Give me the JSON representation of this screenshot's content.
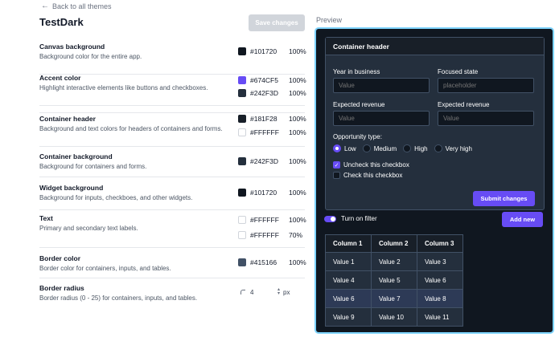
{
  "nav": {
    "back_label": "Back to all themes"
  },
  "theme": {
    "name": "TestDark",
    "save_label": "Save changes"
  },
  "settings": {
    "canvas": {
      "title": "Canvas background",
      "desc": "Background color for the entire app.",
      "colors": [
        {
          "hex": "#101720",
          "alpha": "100%"
        }
      ]
    },
    "accent": {
      "title": "Accent color",
      "desc": "Highlight interactive elements like buttons and checkboxes.",
      "colors": [
        {
          "hex": "#674CF5",
          "alpha": "100%"
        },
        {
          "hex": "#242F3D",
          "alpha": "100%"
        }
      ]
    },
    "header": {
      "title": "Container header",
      "desc": "Background and text colors for headers of containers and forms.",
      "colors": [
        {
          "hex": "#181F28",
          "alpha": "100%"
        },
        {
          "hex": "#FFFFFF",
          "alpha": "100%"
        }
      ]
    },
    "container": {
      "title": "Container background",
      "desc": "Background for containers and forms.",
      "colors": [
        {
          "hex": "#242F3D",
          "alpha": "100%"
        }
      ]
    },
    "widget": {
      "title": "Widget background",
      "desc": "Background for inputs, checkboes, and other widgets.",
      "colors": [
        {
          "hex": "#101720",
          "alpha": "100%"
        }
      ]
    },
    "text": {
      "title": "Text",
      "desc": "Primary and secondary text labels.",
      "colors": [
        {
          "hex": "#FFFFFF",
          "alpha": "100%"
        },
        {
          "hex": "#FFFFFF",
          "alpha": "70%"
        }
      ]
    },
    "border": {
      "title": "Border color",
      "desc": "Border color for containers, inputs, and tables.",
      "colors": [
        {
          "hex": "#415166",
          "alpha": "100%"
        }
      ]
    },
    "radius": {
      "title": "Border radius",
      "desc": "Border radius (0 - 25) for containers, inputs, and tables.",
      "value": "4",
      "unit": "px"
    }
  },
  "preview": {
    "label": "Preview",
    "card_title": "Container header",
    "fields": [
      {
        "label": "Year in business",
        "placeholder": "Value"
      },
      {
        "label": "Focused state",
        "placeholder": "placeholder"
      },
      {
        "label": "Expected revenue",
        "placeholder": "Value"
      },
      {
        "label": "Expected revenue",
        "placeholder": "Value"
      }
    ],
    "opportunity_label": "Opportunity type:",
    "radio_options": [
      "Low",
      "Medium",
      "High",
      "Very high"
    ],
    "radio_selected": "Low",
    "checkboxes": [
      {
        "label": "Uncheck this checkbox",
        "checked": true
      },
      {
        "label": "Check this checkbox",
        "checked": false
      }
    ],
    "submit_label": "Submit changes",
    "toggle_label": "Turn on filter",
    "toggle_on": true,
    "add_label": "Add new",
    "table": {
      "headers": [
        "Column 1",
        "Column 2",
        "Column 3"
      ],
      "rows": [
        [
          "Value 1",
          "Value 2",
          "Value 3"
        ],
        [
          "Value 4",
          "Value 5",
          "Value 6"
        ],
        [
          "Value 6",
          "Value 7",
          "Value 8"
        ],
        [
          "Value 9",
          "Value 10",
          "Value 11"
        ]
      ],
      "highlighted_row": 3
    }
  },
  "colors": {
    "accent": "#674CF5",
    "canvas": "#101720",
    "container": "#242F3D",
    "header": "#181F28",
    "border": "#415166",
    "focus_ring": "#7dd3fc"
  }
}
